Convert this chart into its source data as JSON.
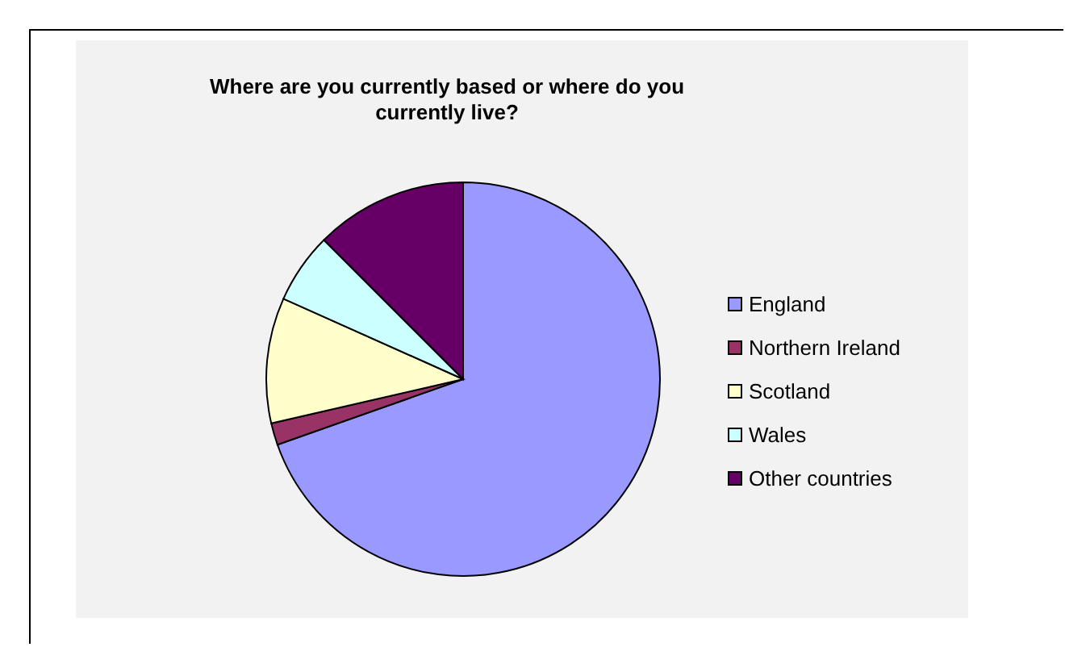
{
  "chart_data": {
    "type": "pie",
    "title": "Where are you currently based or where do you currently live?",
    "categories": [
      "England",
      "Northern Ireland",
      "Scotland",
      "Wales",
      "Other countries"
    ],
    "values": [
      69.6,
      1.8,
      10.3,
      5.8,
      12.5
    ],
    "colors": [
      "#9999ff",
      "#993366",
      "#ffffcc",
      "#ccffff",
      "#660066"
    ],
    "legend": "right"
  }
}
